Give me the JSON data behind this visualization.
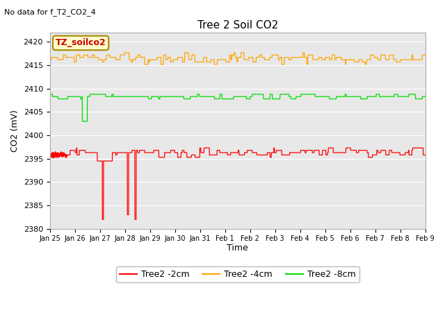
{
  "title": "Tree 2 Soil CO2",
  "top_left_text": "No data for f_T2_CO2_4",
  "ylabel": "CO2 (mV)",
  "xlabel": "Time",
  "annotation_box": "TZ_soilco2",
  "plot_bg_color": "#e8e8e8",
  "fig_bg_color": "#ffffff",
  "ylim": [
    2380,
    2422
  ],
  "yticks": [
    2380,
    2385,
    2390,
    2395,
    2400,
    2405,
    2410,
    2415,
    2420
  ],
  "xtick_labels": [
    "Jan 25",
    "Jan 26",
    "Jan 27",
    "Jan 28",
    "Jan 29",
    "Jan 30",
    "Jan 31",
    "Feb 1",
    "Feb 2",
    "Feb 3",
    "Feb 4",
    "Feb 5",
    "Feb 6",
    "Feb 7",
    "Feb 8",
    "Feb 9"
  ],
  "red_color": "#ff0000",
  "orange_color": "#ffa500",
  "green_color": "#00dd00",
  "legend_labels": [
    "Tree2 -2cm",
    "Tree2 -4cm",
    "Tree2 -8cm"
  ],
  "red_base": 2396.3,
  "orange_base": 2416.2,
  "green_base": 2408.3,
  "n_points": 3200
}
